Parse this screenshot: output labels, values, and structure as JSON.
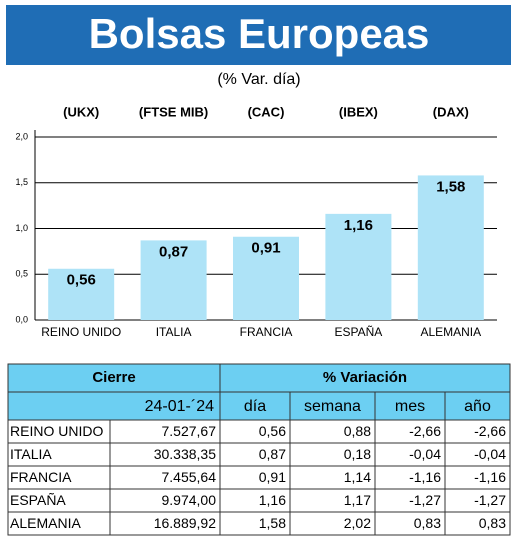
{
  "chart_data": {
    "type": "bar",
    "title": "Bolsas Europeas",
    "subtitle": "(% Var. día)",
    "index_labels": [
      "(UKX)",
      "(FTSE MIB)",
      "(CAC)",
      "(IBEX)",
      "(DAX)"
    ],
    "categories": [
      "REINO UNIDO",
      "ITALIA",
      "FRANCIA",
      "ESPAÑA",
      "ALEMANIA"
    ],
    "values": [
      0.56,
      0.87,
      0.91,
      1.16,
      1.58
    ],
    "value_labels": [
      "0,56",
      "0,87",
      "0,91",
      "1,16",
      "1,58"
    ],
    "color": "#aee3f7",
    "ylim": [
      0,
      2
    ],
    "yticks": [
      {
        "value": 0,
        "label": "0,0"
      },
      {
        "value": 0.5,
        "label": "0,5"
      },
      {
        "value": 1,
        "label": "1,0"
      },
      {
        "value": 1.5,
        "label": "1,5"
      },
      {
        "value": 2,
        "label": "2,0"
      }
    ],
    "grid": true
  },
  "table": {
    "header": [
      "Cierre",
      "% Variación"
    ],
    "subheader": [
      "24-01-´24",
      "día",
      "semana",
      "mes",
      "año"
    ],
    "rows": [
      [
        "REINO UNIDO",
        "7.527,67",
        "0,56",
        "0,88",
        "-2,66",
        "-2,66"
      ],
      [
        "ITALIA",
        "30.338,35",
        "0,87",
        "0,18",
        "-0,04",
        "-0,04"
      ],
      [
        "FRANCIA",
        "7.455,64",
        "0,91",
        "1,14",
        "-1,16",
        "-1,16"
      ],
      [
        "ESPAÑA",
        "9.974,00",
        "1,16",
        "1,17",
        "-1,27",
        "-1,27"
      ],
      [
        "ALEMANIA",
        "16.889,92",
        "1,58",
        "2,02",
        "0,83",
        "0,83"
      ]
    ]
  }
}
